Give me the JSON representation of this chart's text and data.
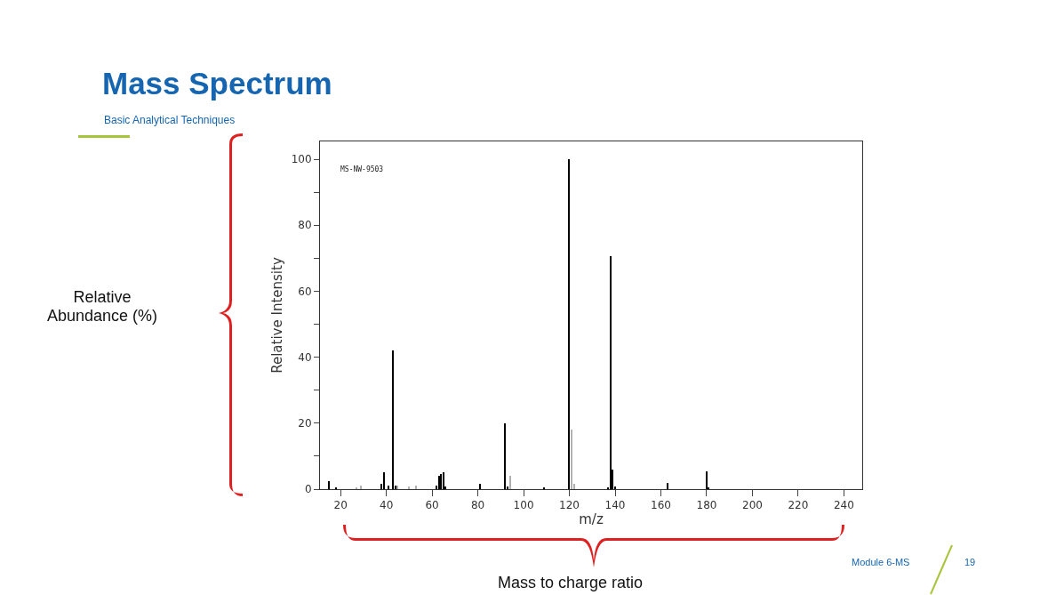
{
  "chart_data": {
    "type": "bar",
    "title": "Mass Spectrum",
    "subtitle": "Basic Analytical Techniques",
    "xlabel": "m/z",
    "ylabel": "Relative Intensity",
    "annotations": [
      "MS-NW-9503",
      "Relative Abundance (%)",
      "Mass to charge ratio",
      "Module 6-MS",
      "19"
    ],
    "series": [
      {
        "color": "#000000",
        "x": [
          15,
          18,
          38,
          39,
          41,
          43,
          44,
          62,
          63,
          64,
          65,
          66,
          81,
          92,
          93,
          109,
          120,
          137,
          138,
          139,
          140,
          163,
          180,
          181
        ],
        "values": [
          2.5,
          0.6,
          1.5,
          5,
          1,
          42,
          1,
          1,
          4,
          4.5,
          5,
          0.7,
          1.5,
          20,
          0.8,
          0.5,
          100,
          0.5,
          70.5,
          6,
          0.7,
          2,
          5.5,
          0.5
        ]
      },
      {
        "color": "#b0b0b0",
        "x": [
          27,
          29,
          45,
          50,
          53,
          94,
          121,
          122
        ],
        "values": [
          0.5,
          1,
          1.2,
          0.8,
          1.2,
          4,
          18,
          1.5
        ]
      }
    ],
    "xlim": [
      11,
      248
    ],
    "xticks": [
      20,
      40,
      60,
      80,
      100,
      120,
      140,
      160,
      180,
      200,
      220,
      240
    ],
    "ylim": [
      0,
      105.4
    ],
    "yticks": [
      0,
      {
        "value": 10,
        "label": null
      },
      20,
      {
        "value": 30,
        "label": null
      },
      40,
      {
        "value": 50,
        "label": null
      },
      60,
      {
        "value": 70,
        "label": null
      },
      80,
      {
        "value": 90,
        "label": null
      },
      100
    ],
    "grid": false
  }
}
